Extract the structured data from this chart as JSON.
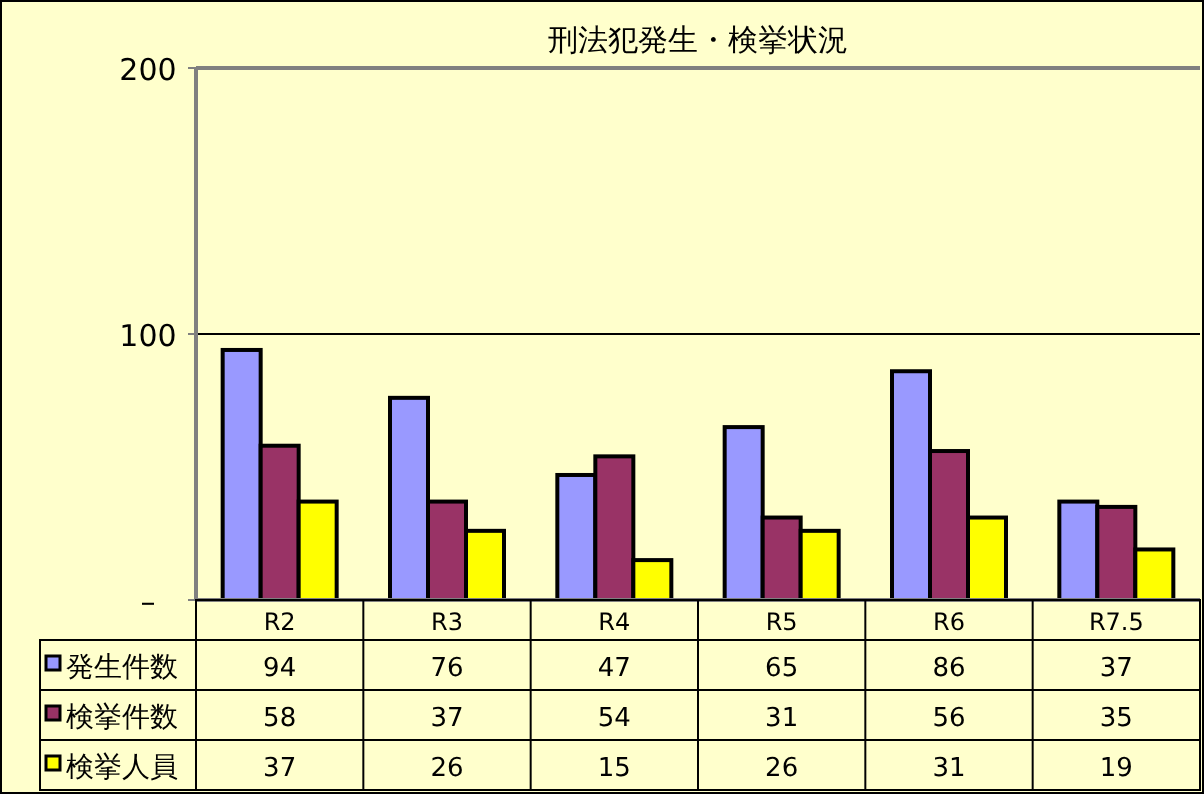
{
  "chart_data": {
    "type": "bar",
    "title": "刑法犯発生・検挙状況",
    "categories": [
      "R2",
      "R3",
      "R4",
      "R5",
      "R6",
      "R7.5"
    ],
    "series": [
      {
        "name": "発生件数",
        "color": "#9999ff",
        "values": [
          94,
          76,
          47,
          65,
          86,
          37
        ]
      },
      {
        "name": "検挙件数",
        "color": "#993366",
        "values": [
          58,
          37,
          54,
          31,
          56,
          35
        ]
      },
      {
        "name": "検挙人員",
        "color": "#ffff00",
        "values": [
          37,
          26,
          15,
          26,
          31,
          19
        ]
      }
    ],
    "ylim": [
      0,
      200
    ],
    "yticks": [
      {
        "value": 0,
        "label": "–"
      },
      100,
      200
    ],
    "grid": "y",
    "legend": "bottom",
    "data_labels": true
  }
}
